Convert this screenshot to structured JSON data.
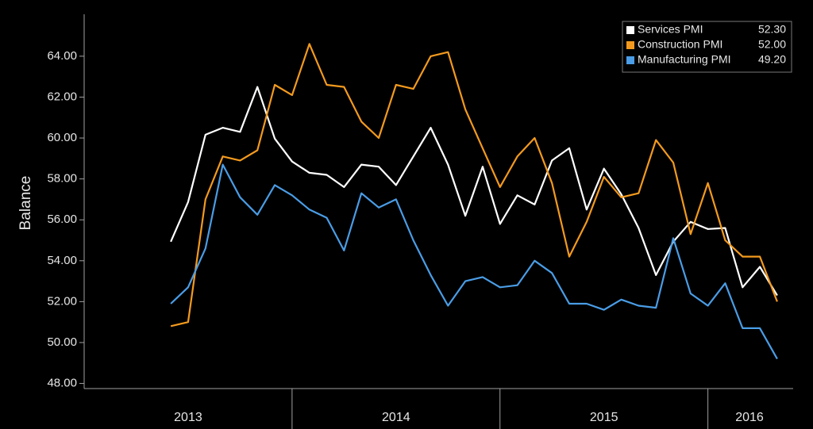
{
  "chart_data": {
    "type": "line",
    "y_label": "Balance",
    "x": [
      2013.4167,
      2013.5,
      2013.5833,
      2013.6667,
      2013.75,
      2013.8333,
      2013.9167,
      2014.0,
      2014.0833,
      2014.1667,
      2014.25,
      2014.3333,
      2014.4167,
      2014.5,
      2014.5833,
      2014.6667,
      2014.75,
      2014.8333,
      2014.9167,
      2015.0,
      2015.0833,
      2015.1667,
      2015.25,
      2015.3333,
      2015.4167,
      2015.5,
      2015.5833,
      2015.6667,
      2015.75,
      2015.8333,
      2015.9167,
      2016.0,
      2016.0833,
      2016.1667,
      2016.25,
      2016.3333
    ],
    "series": [
      {
        "name": "Services PMI",
        "color": "#ffffff",
        "last_value_label": "52.30",
        "values": [
          54.93,
          56.87,
          60.16,
          60.5,
          60.3,
          62.5,
          59.97,
          58.85,
          58.3,
          58.2,
          57.6,
          58.7,
          58.6,
          57.7,
          59.1,
          60.5,
          58.7,
          56.2,
          58.6,
          55.8,
          57.2,
          56.75,
          58.9,
          59.5,
          56.5,
          58.5,
          57.25,
          55.6,
          53.3,
          54.93,
          55.9,
          55.55,
          55.6,
          52.7,
          53.7,
          52.3
        ]
      },
      {
        "name": "Construction PMI",
        "color": "#f39a1e",
        "last_value_label": "52.00",
        "values": [
          50.8,
          51.0,
          57.0,
          59.1,
          58.9,
          59.4,
          62.6,
          62.1,
          64.6,
          62.6,
          62.5,
          60.8,
          60.0,
          62.6,
          62.4,
          64.0,
          64.2,
          61.4,
          59.5,
          57.6,
          59.1,
          60.0,
          57.8,
          54.2,
          55.9,
          58.1,
          57.1,
          57.3,
          59.9,
          58.8,
          55.3,
          57.8,
          55.0,
          54.2,
          54.2,
          52.0
        ]
      },
      {
        "name": "Manufacturing PMI",
        "color": "#4a9de6",
        "last_value_label": "49.20",
        "values": [
          51.9,
          52.7,
          54.6,
          58.7,
          57.1,
          56.25,
          57.7,
          57.2,
          56.5,
          56.1,
          54.5,
          57.3,
          56.6,
          57.0,
          55.0,
          53.3,
          51.8,
          53.0,
          53.2,
          52.7,
          52.8,
          54.0,
          53.4,
          51.9,
          51.9,
          51.6,
          52.1,
          51.8,
          51.7,
          55.1,
          52.4,
          51.8,
          52.9,
          50.7,
          50.7,
          49.2
        ]
      }
    ],
    "xlim": [
      2013.0,
      2016.41
    ],
    "xticks": [
      {
        "value": 2013.5,
        "label": "2013"
      },
      {
        "value": 2014.5,
        "label": "2014"
      },
      {
        "value": 2015.5,
        "label": "2015"
      },
      {
        "value": 2016.2,
        "label": "2016"
      }
    ],
    "x_dividers": [
      2014,
      2015,
      2016
    ],
    "ylim": [
      47.75,
      66.05
    ],
    "yticks": [
      {
        "value": 48,
        "label": "48.00"
      },
      {
        "value": 50,
        "label": "50.00"
      },
      {
        "value": 52,
        "label": "52.00"
      },
      {
        "value": 54,
        "label": "54.00"
      },
      {
        "value": 56,
        "label": "56.00"
      },
      {
        "value": 58,
        "label": "58.00"
      },
      {
        "value": 60,
        "label": "60.00"
      },
      {
        "value": 62,
        "label": "62.00"
      },
      {
        "value": 64,
        "label": "64.00"
      }
    ],
    "legend": "top-right"
  }
}
